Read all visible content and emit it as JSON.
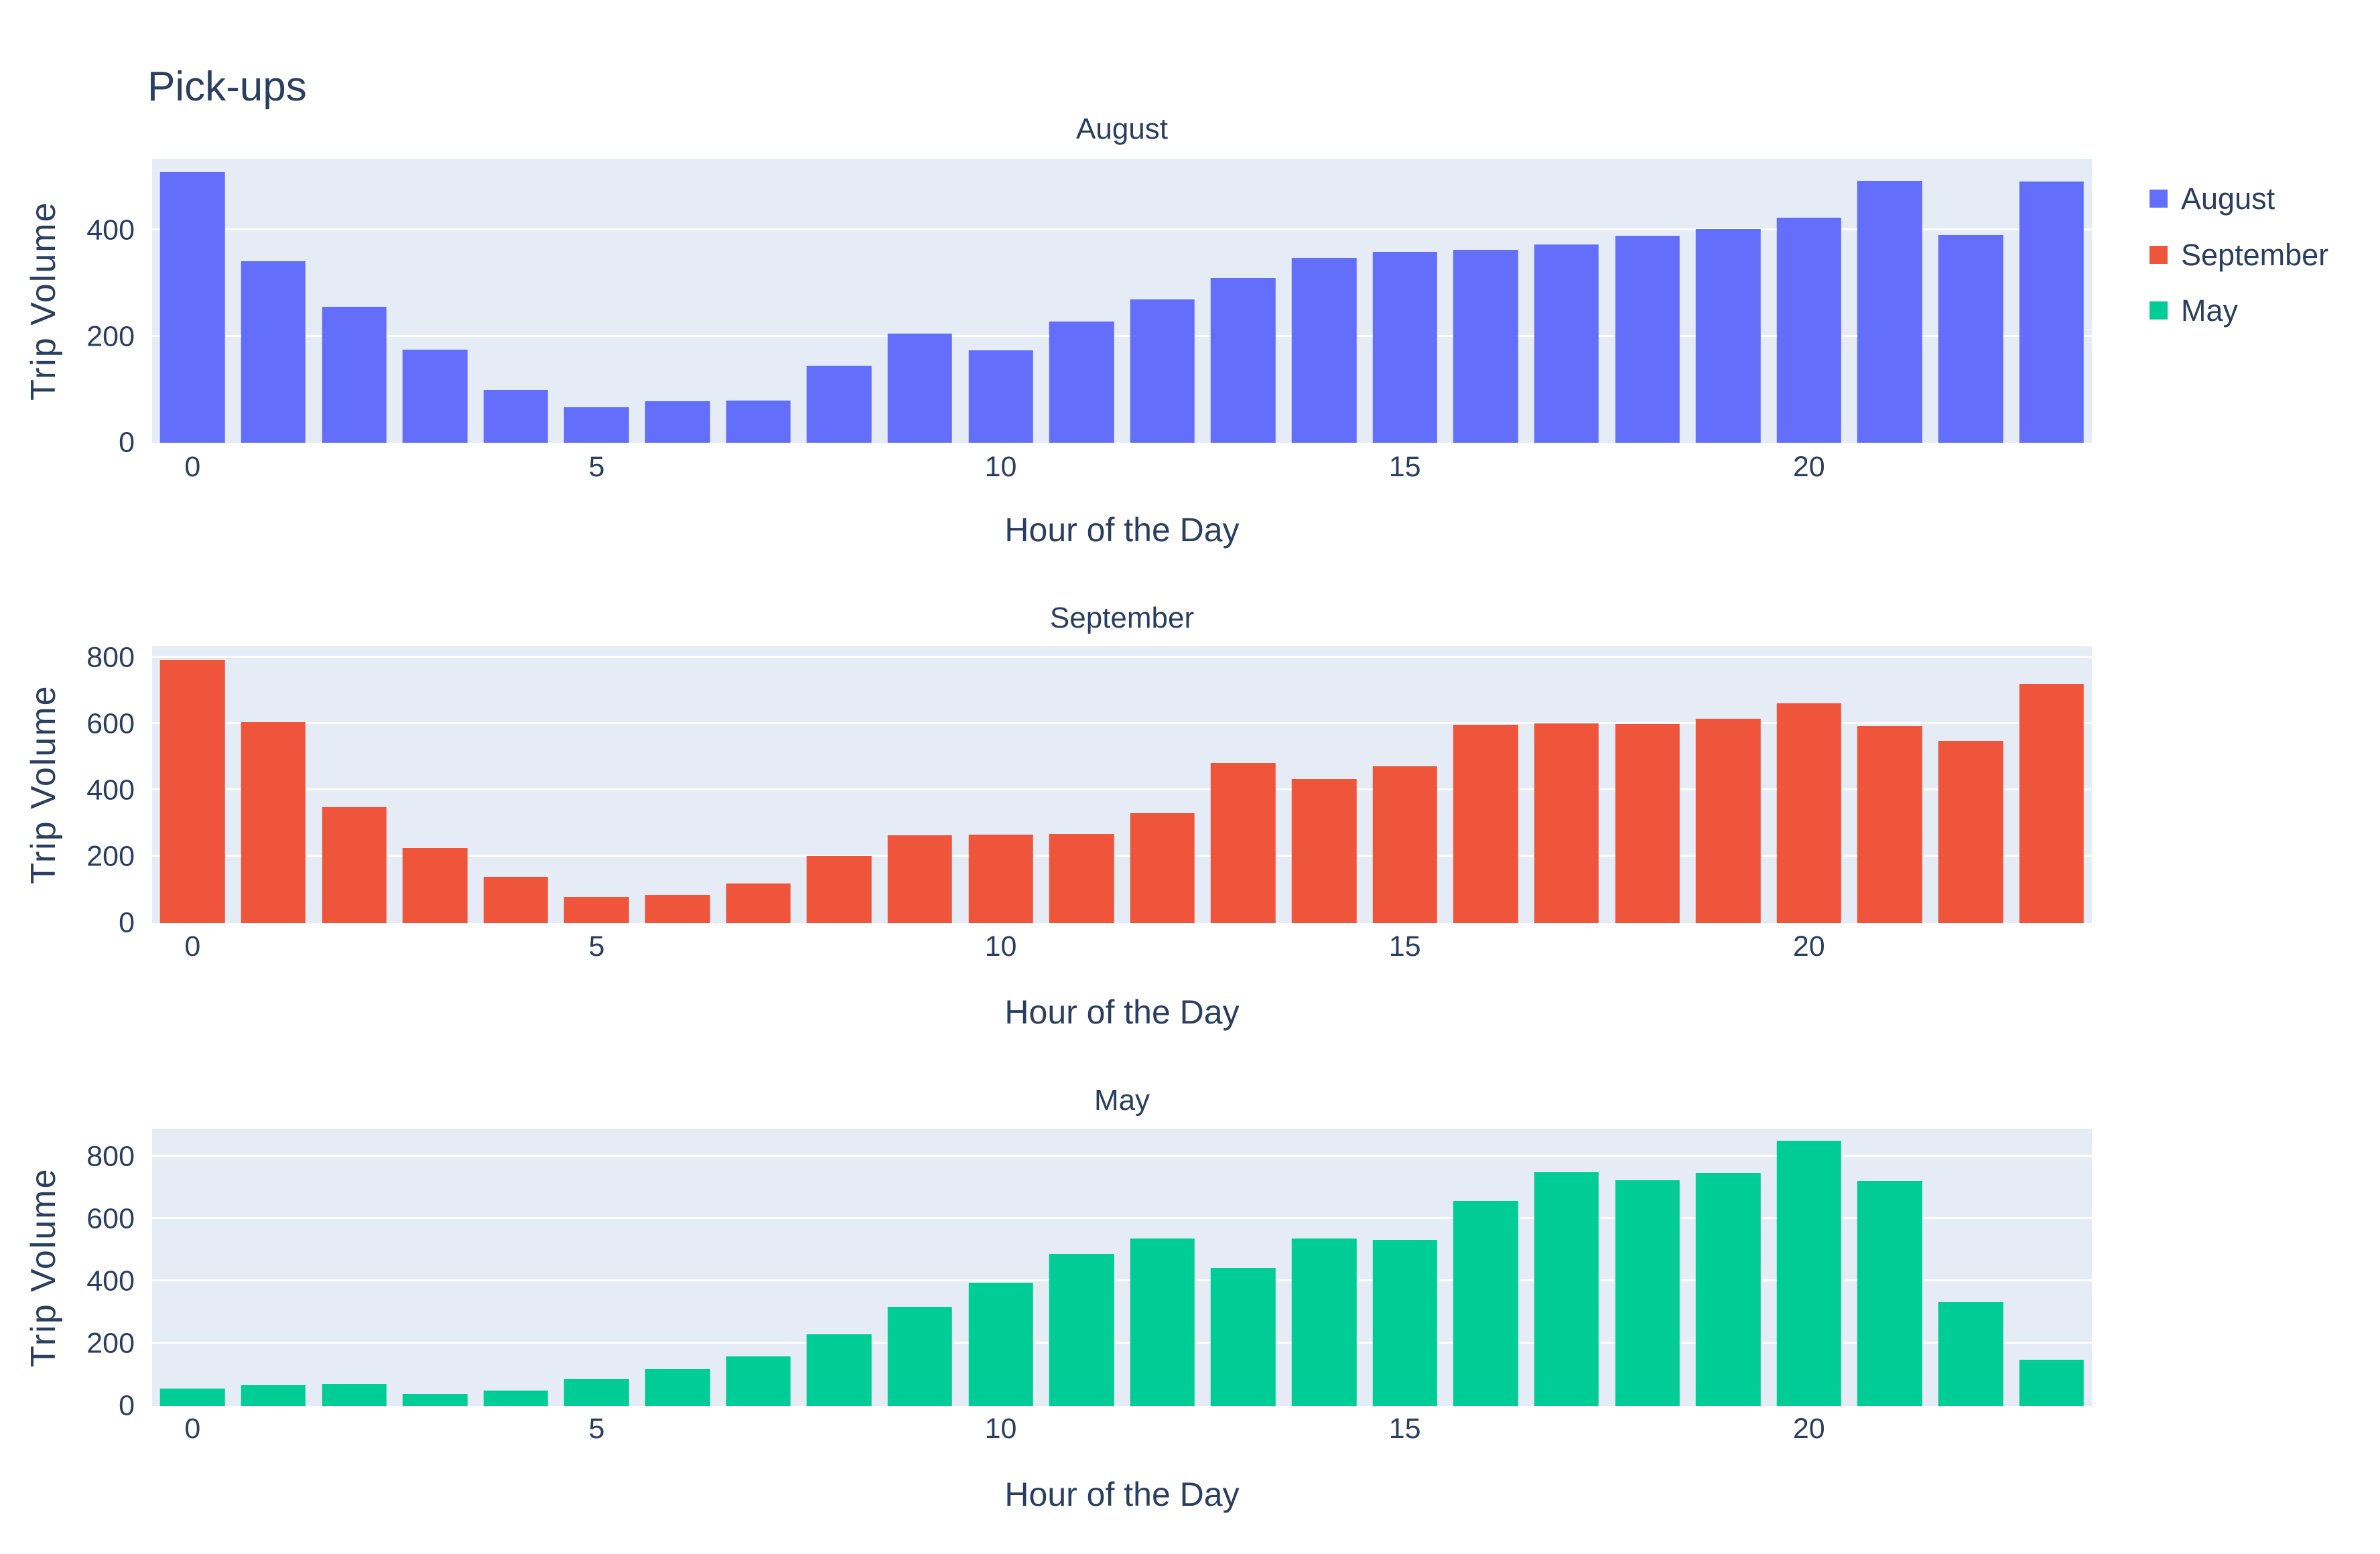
{
  "title": "Pick-ups",
  "colors": {
    "text": "#2a3f5f",
    "page_background": "#ffffff",
    "plot_background": "#e5ecf6",
    "gridline": "#ffffff",
    "august": "#636efa",
    "september": "#ef553b",
    "may": "#00cc96"
  },
  "legend": {
    "items": [
      {
        "label": "August",
        "color": "#636efa"
      },
      {
        "label": "September",
        "color": "#ef553b"
      },
      {
        "label": "May",
        "color": "#00cc96"
      }
    ]
  },
  "chart_data": [
    {
      "type": "bar",
      "title": "August",
      "xlabel": "Hour of the Day",
      "ylabel": "Trip Volume",
      "color": "#636efa",
      "x": [
        0,
        1,
        2,
        3,
        4,
        5,
        6,
        7,
        8,
        9,
        10,
        11,
        12,
        13,
        14,
        15,
        16,
        17,
        18,
        19,
        20,
        21,
        22,
        23
      ],
      "values": [
        510,
        342,
        256,
        175,
        100,
        67,
        78,
        80,
        145,
        206,
        174,
        229,
        270,
        311,
        348,
        359,
        364,
        373,
        390,
        402,
        424,
        494,
        391,
        492
      ],
      "ylim": [
        0,
        535
      ],
      "yticks": [
        0,
        200,
        400
      ],
      "xticks": [
        0,
        5,
        10,
        15,
        20
      ],
      "grid": true,
      "legend_position": "right"
    },
    {
      "type": "bar",
      "title": "September",
      "xlabel": "Hour of the Day",
      "ylabel": "Trip Volume",
      "color": "#ef553b",
      "x": [
        0,
        1,
        2,
        3,
        4,
        5,
        6,
        7,
        8,
        9,
        10,
        11,
        12,
        13,
        14,
        15,
        16,
        17,
        18,
        19,
        20,
        21,
        22,
        23
      ],
      "values": [
        794,
        607,
        350,
        226,
        139,
        79,
        84,
        119,
        203,
        265,
        267,
        269,
        332,
        483,
        435,
        473,
        599,
        602,
        600,
        616,
        663,
        595,
        550,
        722
      ],
      "ylim": [
        0,
        835
      ],
      "yticks": [
        0,
        200,
        400,
        600,
        800
      ],
      "xticks": [
        0,
        5,
        10,
        15,
        20
      ],
      "grid": true,
      "legend_position": "right"
    },
    {
      "type": "bar",
      "title": "May",
      "xlabel": "Hour of the Day",
      "ylabel": "Trip Volume",
      "color": "#00cc96",
      "x": [
        0,
        1,
        2,
        3,
        4,
        5,
        6,
        7,
        8,
        9,
        10,
        11,
        12,
        13,
        14,
        15,
        16,
        17,
        18,
        19,
        20,
        21,
        22,
        23
      ],
      "values": [
        56,
        66,
        71,
        38,
        49,
        85,
        118,
        160,
        230,
        319,
        396,
        488,
        538,
        443,
        538,
        534,
        657,
        751,
        725,
        748,
        851,
        723,
        333,
        148
      ],
      "ylim": [
        0,
        890
      ],
      "yticks": [
        0,
        200,
        400,
        600,
        800
      ],
      "xticks": [
        0,
        5,
        10,
        15,
        20
      ],
      "grid": true,
      "legend_position": "right"
    }
  ]
}
